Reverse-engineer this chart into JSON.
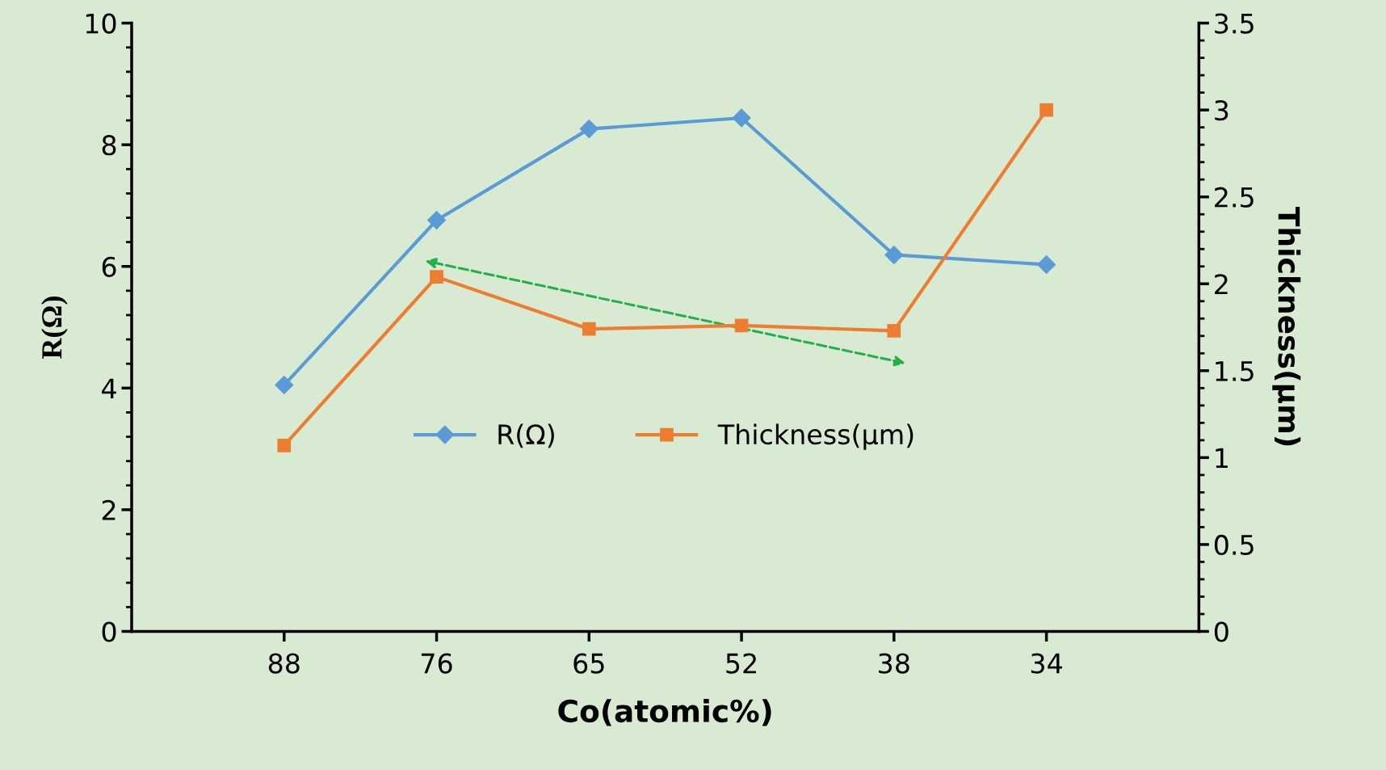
{
  "chart_data": {
    "type": "line",
    "xlabel": "Co(atomic%)",
    "ylabel": "R(Ω)",
    "y2label": "Thickness(µm)",
    "categories": [
      "88",
      "76",
      "65",
      "52",
      "38",
      "34"
    ],
    "series": [
      {
        "name": "R(Ω)",
        "color": "#5b9bd5",
        "values": [
          4.05,
          6.76,
          8.26,
          8.44,
          6.19,
          6.03
        ],
        "marker": "diamond"
      },
      {
        "name": "Thickness(µm)",
        "color": "#ed7d31",
        "values": [
          1.07,
          2.04,
          1.74,
          1.76,
          1.73,
          3.0
        ],
        "axis": "y2",
        "marker": "square"
      }
    ],
    "ylim": [
      0,
      10
    ],
    "yticks": [
      0,
      2,
      4,
      6,
      8,
      10
    ],
    "y2lim": [
      0,
      3.5
    ],
    "y2ticks": [
      0,
      0.5,
      1,
      1.5,
      2,
      2.5,
      3,
      3.5
    ],
    "grid": false,
    "legend": "center",
    "line_style": "solid"
  }
}
